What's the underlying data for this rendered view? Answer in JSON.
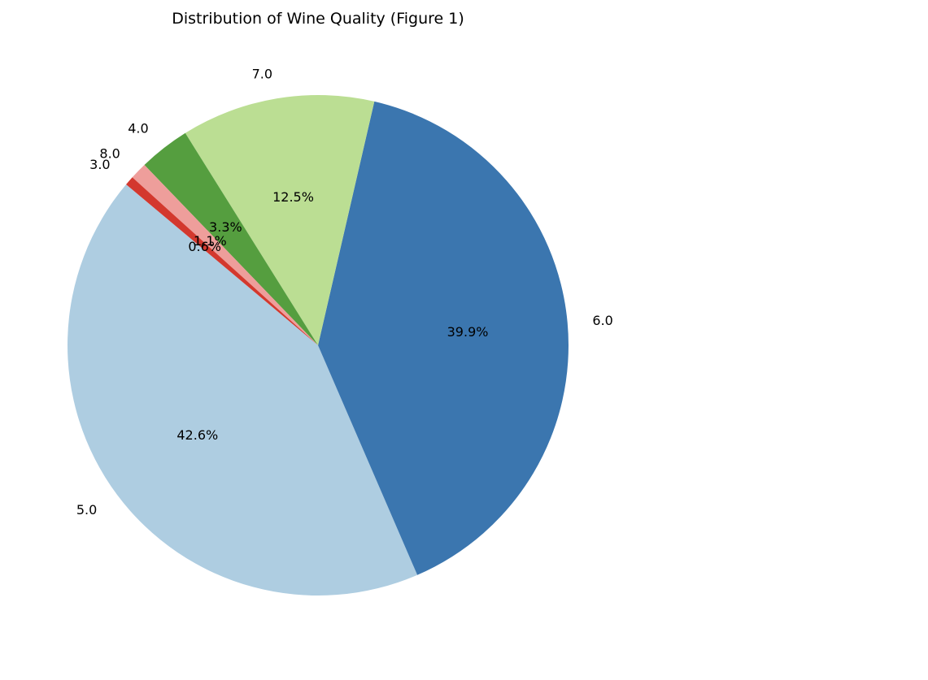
{
  "chart_data": {
    "type": "pie",
    "title": "Distribution of Wine Quality (Figure 1)",
    "labels": [
      "5.0",
      "6.0",
      "7.0",
      "4.0",
      "8.0",
      "3.0"
    ],
    "values": [
      42.6,
      39.9,
      12.5,
      3.3,
      1.1,
      0.6
    ],
    "value_labels": [
      "42.6%",
      "39.9%",
      "12.5%",
      "3.3%",
      "1.1%",
      "0.6%"
    ],
    "colors": [
      "#aecde1",
      "#3b76af",
      "#bbde93",
      "#559e3f",
      "#ee9e9b",
      "#d3382e"
    ],
    "start_angle_deg": 140,
    "direction": "counterclockwise",
    "legend": "none"
  }
}
